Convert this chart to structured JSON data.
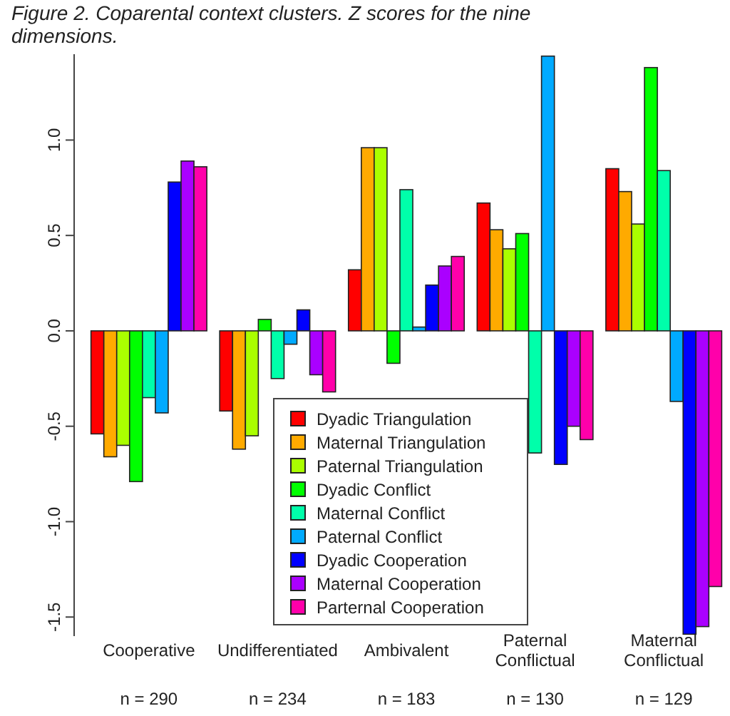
{
  "chart_data": {
    "type": "bar",
    "title": "Figure 2. Coparental context clusters. Z scores for the nine dimensions.",
    "categories": [
      "Cooperative",
      "Undifferentiated",
      "Ambivalent",
      "Paternal Conflictual",
      "Maternal Conflictual"
    ],
    "series": [
      {
        "name": "Dyadic Triangulation",
        "color": "#ff0000",
        "values": [
          -0.54,
          -0.42,
          0.32,
          0.67,
          0.85
        ]
      },
      {
        "name": "Maternal Triangulation",
        "color": "#ffaa00",
        "values": [
          -0.66,
          -0.62,
          0.96,
          0.53,
          0.73
        ]
      },
      {
        "name": "Paternal Triangulation",
        "color": "#aaff00",
        "values": [
          -0.6,
          -0.55,
          0.96,
          0.43,
          0.56
        ]
      },
      {
        "name": "Dyadic Conflict",
        "color": "#00ff00",
        "values": [
          -0.79,
          0.06,
          -0.17,
          0.51,
          1.38
        ]
      },
      {
        "name": "Maternal Conflict",
        "color": "#00ffaa",
        "values": [
          -0.35,
          -0.25,
          0.74,
          -0.64,
          0.84
        ]
      },
      {
        "name": "Paternal Conflict",
        "color": "#00aaff",
        "values": [
          -0.43,
          -0.07,
          0.02,
          1.44,
          -0.37
        ]
      },
      {
        "name": "Dyadic Cooperation",
        "color": "#0000ff",
        "values": [
          0.78,
          0.11,
          0.24,
          -0.7,
          -1.59
        ]
      },
      {
        "name": "Maternal Cooperation",
        "color": "#aa00ff",
        "values": [
          0.89,
          -0.23,
          0.34,
          -0.5,
          -1.55
        ]
      },
      {
        "name": "Parternal Cooperation",
        "color": "#ff00aa",
        "values": [
          0.86,
          -0.32,
          0.39,
          -0.57,
          -1.34
        ]
      }
    ],
    "annotations": [
      "n = 290",
      "n = 234",
      "n = 183",
      "n = 130",
      "n = 129"
    ],
    "ylim": [
      -1.6,
      1.45
    ],
    "yticks": [
      -1.5,
      {
        "value": -1,
        "label": "-1.0"
      },
      {
        "value": -0.5,
        "label": "-0.5"
      },
      {
        "value": 0,
        "label": "0.0"
      },
      0.5,
      {
        "value": 1,
        "label": "1.0"
      }
    ],
    "legend": "bottom",
    "grid": false
  }
}
